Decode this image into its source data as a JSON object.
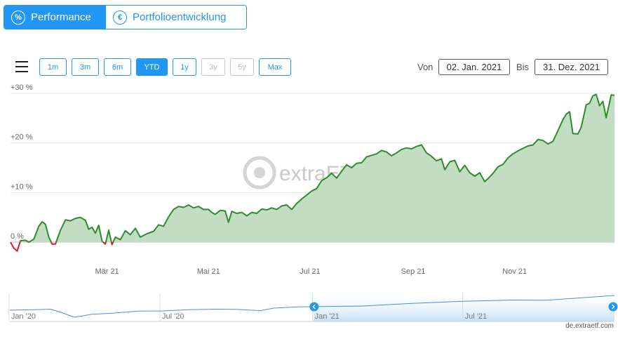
{
  "tabs": [
    {
      "label": "Performance",
      "icon": "percent-icon",
      "active": true
    },
    {
      "label": "Portfolioentwicklung",
      "icon": "euro-icon",
      "active": false
    }
  ],
  "ranges": [
    {
      "label": "1m",
      "state": "normal"
    },
    {
      "label": "3m",
      "state": "normal"
    },
    {
      "label": "6m",
      "state": "normal"
    },
    {
      "label": "YTD",
      "state": "selected"
    },
    {
      "label": "1y",
      "state": "normal"
    },
    {
      "label": "3y",
      "state": "disabled"
    },
    {
      "label": "5y",
      "state": "disabled"
    },
    {
      "label": "Max",
      "state": "normal"
    }
  ],
  "date_range": {
    "from_label": "Von",
    "from_value": "02. Jan. 2021",
    "to_label": "Bis",
    "to_value": "31. Dez. 2021"
  },
  "watermark": "extraETF",
  "credit": "de.extraetf.com",
  "colors": {
    "accent": "#2196f3",
    "positive_line": "#2e8b2e",
    "positive_fill": "#c3ddc3",
    "negative_line": "#d81b3c"
  },
  "chart_data": {
    "type": "area",
    "title": "",
    "xlabel": "",
    "ylabel": "",
    "y_unit": "%",
    "ylim": [
      -2,
      30
    ],
    "y_ticks": [
      {
        "value": 0,
        "label": "0 %"
      },
      {
        "value": 10,
        "label": "+10 %"
      },
      {
        "value": 20,
        "label": "+20 %"
      },
      {
        "value": 30,
        "label": "+30 %"
      }
    ],
    "x_range": [
      "2021-01-02",
      "2021-12-31"
    ],
    "x_ticks": [
      {
        "date": "2021-03-01",
        "label": "Mär 21"
      },
      {
        "date": "2021-05-01",
        "label": "Mai 21"
      },
      {
        "date": "2021-07-01",
        "label": "Jul 21"
      },
      {
        "date": "2021-09-01",
        "label": "Sep 21"
      },
      {
        "date": "2021-11-01",
        "label": "Nov 21"
      }
    ],
    "grid": true,
    "series": [
      {
        "points": [
          [
            "2021-01-02",
            0.0
          ],
          [
            "2021-01-04",
            -1.2
          ],
          [
            "2021-01-06",
            -1.8
          ],
          [
            "2021-01-08",
            0.3
          ],
          [
            "2021-01-11",
            0.4
          ],
          [
            "2021-01-13",
            0.0
          ],
          [
            "2021-01-16",
            0.6
          ],
          [
            "2021-01-19",
            3.2
          ],
          [
            "2021-01-21",
            4.1
          ],
          [
            "2021-01-23",
            3.6
          ],
          [
            "2021-01-25",
            1.0
          ],
          [
            "2021-01-27",
            -0.4
          ],
          [
            "2021-01-29",
            -0.4
          ],
          [
            "2021-02-01",
            2.4
          ],
          [
            "2021-02-04",
            4.5
          ],
          [
            "2021-02-07",
            4.3
          ],
          [
            "2021-02-10",
            4.8
          ],
          [
            "2021-02-13",
            5.0
          ],
          [
            "2021-02-16",
            4.4
          ],
          [
            "2021-02-18",
            2.6
          ],
          [
            "2021-02-20",
            3.0
          ],
          [
            "2021-02-22",
            1.8
          ],
          [
            "2021-02-24",
            3.4
          ],
          [
            "2021-02-26",
            0.2
          ],
          [
            "2021-02-28",
            -0.4
          ],
          [
            "2021-03-02",
            2.4
          ],
          [
            "2021-03-04",
            -0.5
          ],
          [
            "2021-03-06",
            1.0
          ],
          [
            "2021-03-09",
            0.5
          ],
          [
            "2021-03-12",
            2.3
          ],
          [
            "2021-03-15",
            1.5
          ],
          [
            "2021-03-18",
            2.8
          ],
          [
            "2021-03-21",
            1.0
          ],
          [
            "2021-03-25",
            1.7
          ],
          [
            "2021-03-29",
            2.2
          ],
          [
            "2021-04-01",
            3.5
          ],
          [
            "2021-04-04",
            3.2
          ],
          [
            "2021-04-07",
            5.1
          ],
          [
            "2021-04-10",
            6.6
          ],
          [
            "2021-04-13",
            7.2
          ],
          [
            "2021-04-16",
            7.0
          ],
          [
            "2021-04-19",
            7.5
          ],
          [
            "2021-04-22",
            6.9
          ],
          [
            "2021-04-25",
            7.2
          ],
          [
            "2021-04-28",
            6.6
          ],
          [
            "2021-05-01",
            6.6
          ],
          [
            "2021-05-03",
            6.0
          ],
          [
            "2021-05-05",
            5.6
          ],
          [
            "2021-05-08",
            6.4
          ],
          [
            "2021-05-11",
            6.3
          ],
          [
            "2021-05-13",
            4.0
          ],
          [
            "2021-05-15",
            6.2
          ],
          [
            "2021-05-18",
            5.8
          ],
          [
            "2021-05-21",
            6.0
          ],
          [
            "2021-05-24",
            5.3
          ],
          [
            "2021-05-27",
            6.0
          ],
          [
            "2021-05-30",
            5.8
          ],
          [
            "2021-06-02",
            6.7
          ],
          [
            "2021-06-05",
            6.5
          ],
          [
            "2021-06-08",
            6.9
          ],
          [
            "2021-06-11",
            6.6
          ],
          [
            "2021-06-14",
            7.3
          ],
          [
            "2021-06-17",
            7.5
          ],
          [
            "2021-06-20",
            6.6
          ],
          [
            "2021-06-23",
            7.8
          ],
          [
            "2021-06-26",
            8.7
          ],
          [
            "2021-06-29",
            9.5
          ],
          [
            "2021-07-02",
            10.3
          ],
          [
            "2021-07-05",
            10.8
          ],
          [
            "2021-07-08",
            12.4
          ],
          [
            "2021-07-11",
            13.0
          ],
          [
            "2021-07-14",
            13.9
          ],
          [
            "2021-07-17",
            12.9
          ],
          [
            "2021-07-20",
            14.3
          ],
          [
            "2021-07-23",
            15.6
          ],
          [
            "2021-07-26",
            15.0
          ],
          [
            "2021-07-29",
            15.9
          ],
          [
            "2021-08-01",
            16.0
          ],
          [
            "2021-08-04",
            17.2
          ],
          [
            "2021-08-07",
            17.5
          ],
          [
            "2021-08-10",
            17.8
          ],
          [
            "2021-08-13",
            18.5
          ],
          [
            "2021-08-16",
            18.2
          ],
          [
            "2021-08-19",
            17.4
          ],
          [
            "2021-08-22",
            18.0
          ],
          [
            "2021-08-25",
            18.7
          ],
          [
            "2021-08-28",
            19.0
          ],
          [
            "2021-08-31",
            18.8
          ],
          [
            "2021-09-03",
            19.3
          ],
          [
            "2021-09-06",
            19.6
          ],
          [
            "2021-09-09",
            18.0
          ],
          [
            "2021-09-12",
            17.3
          ],
          [
            "2021-09-15",
            16.4
          ],
          [
            "2021-09-18",
            16.8
          ],
          [
            "2021-09-20",
            14.6
          ],
          [
            "2021-09-23",
            16.2
          ],
          [
            "2021-09-26",
            16.5
          ],
          [
            "2021-09-29",
            14.2
          ],
          [
            "2021-10-02",
            15.5
          ],
          [
            "2021-10-05",
            14.0
          ],
          [
            "2021-10-08",
            13.3
          ],
          [
            "2021-10-11",
            14.0
          ],
          [
            "2021-10-14",
            12.2
          ],
          [
            "2021-10-16",
            12.8
          ],
          [
            "2021-10-19",
            13.9
          ],
          [
            "2021-10-22",
            15.2
          ],
          [
            "2021-10-25",
            15.7
          ],
          [
            "2021-10-28",
            17.0
          ],
          [
            "2021-10-31",
            17.8
          ],
          [
            "2021-11-03",
            18.4
          ],
          [
            "2021-11-06",
            18.9
          ],
          [
            "2021-11-09",
            19.4
          ],
          [
            "2021-11-12",
            19.6
          ],
          [
            "2021-11-15",
            20.7
          ],
          [
            "2021-11-18",
            20.5
          ],
          [
            "2021-11-21",
            19.8
          ],
          [
            "2021-11-24",
            20.3
          ],
          [
            "2021-11-27",
            22.5
          ],
          [
            "2021-11-30",
            24.7
          ],
          [
            "2021-12-02",
            25.8
          ],
          [
            "2021-12-04",
            26.3
          ],
          [
            "2021-12-06",
            21.9
          ],
          [
            "2021-12-09",
            21.8
          ],
          [
            "2021-12-11",
            23.2
          ],
          [
            "2021-12-14",
            27.7
          ],
          [
            "2021-12-16",
            28.0
          ],
          [
            "2021-12-18",
            29.5
          ],
          [
            "2021-12-20",
            29.8
          ],
          [
            "2021-12-22",
            27.5
          ],
          [
            "2021-12-24",
            28.4
          ],
          [
            "2021-12-26",
            25.1
          ],
          [
            "2021-12-28",
            28.1
          ],
          [
            "2021-12-29",
            29.7
          ],
          [
            "2021-12-31",
            29.6
          ]
        ]
      }
    ],
    "navigator": {
      "x_range": [
        "2020-01-02",
        "2021-12-31"
      ],
      "selected_range": [
        "2021-01-02",
        "2021-12-31"
      ],
      "ticks": [
        {
          "date": "2020-01-01",
          "label": "Jan '20"
        },
        {
          "date": "2020-07-01",
          "label": "Jul '20"
        },
        {
          "date": "2021-01-01",
          "label": "Jan '21"
        },
        {
          "date": "2021-07-01",
          "label": "Jul '21"
        }
      ],
      "points": [
        [
          "2020-01-02",
          0.0
        ],
        [
          "2020-02-01",
          1.0
        ],
        [
          "2020-02-20",
          2.0
        ],
        [
          "2020-03-05",
          -5.0
        ],
        [
          "2020-03-20",
          -14.0
        ],
        [
          "2020-04-10",
          -8.0
        ],
        [
          "2020-05-05",
          -6.0
        ],
        [
          "2020-06-05",
          -2.0
        ],
        [
          "2020-07-05",
          -1.5
        ],
        [
          "2020-08-05",
          1.0
        ],
        [
          "2020-09-05",
          2.0
        ],
        [
          "2020-10-01",
          1.5
        ],
        [
          "2020-10-30",
          -1.0
        ],
        [
          "2020-11-15",
          4.0
        ],
        [
          "2020-12-15",
          6.5
        ],
        [
          "2021-01-02",
          7.0
        ],
        [
          "2021-03-01",
          8.0
        ],
        [
          "2021-05-01",
          13.5
        ],
        [
          "2021-07-01",
          17.5
        ],
        [
          "2021-09-01",
          20.0
        ],
        [
          "2021-10-10",
          19.5
        ],
        [
          "2021-12-01",
          25.5
        ],
        [
          "2021-12-31",
          29.0
        ]
      ]
    }
  }
}
